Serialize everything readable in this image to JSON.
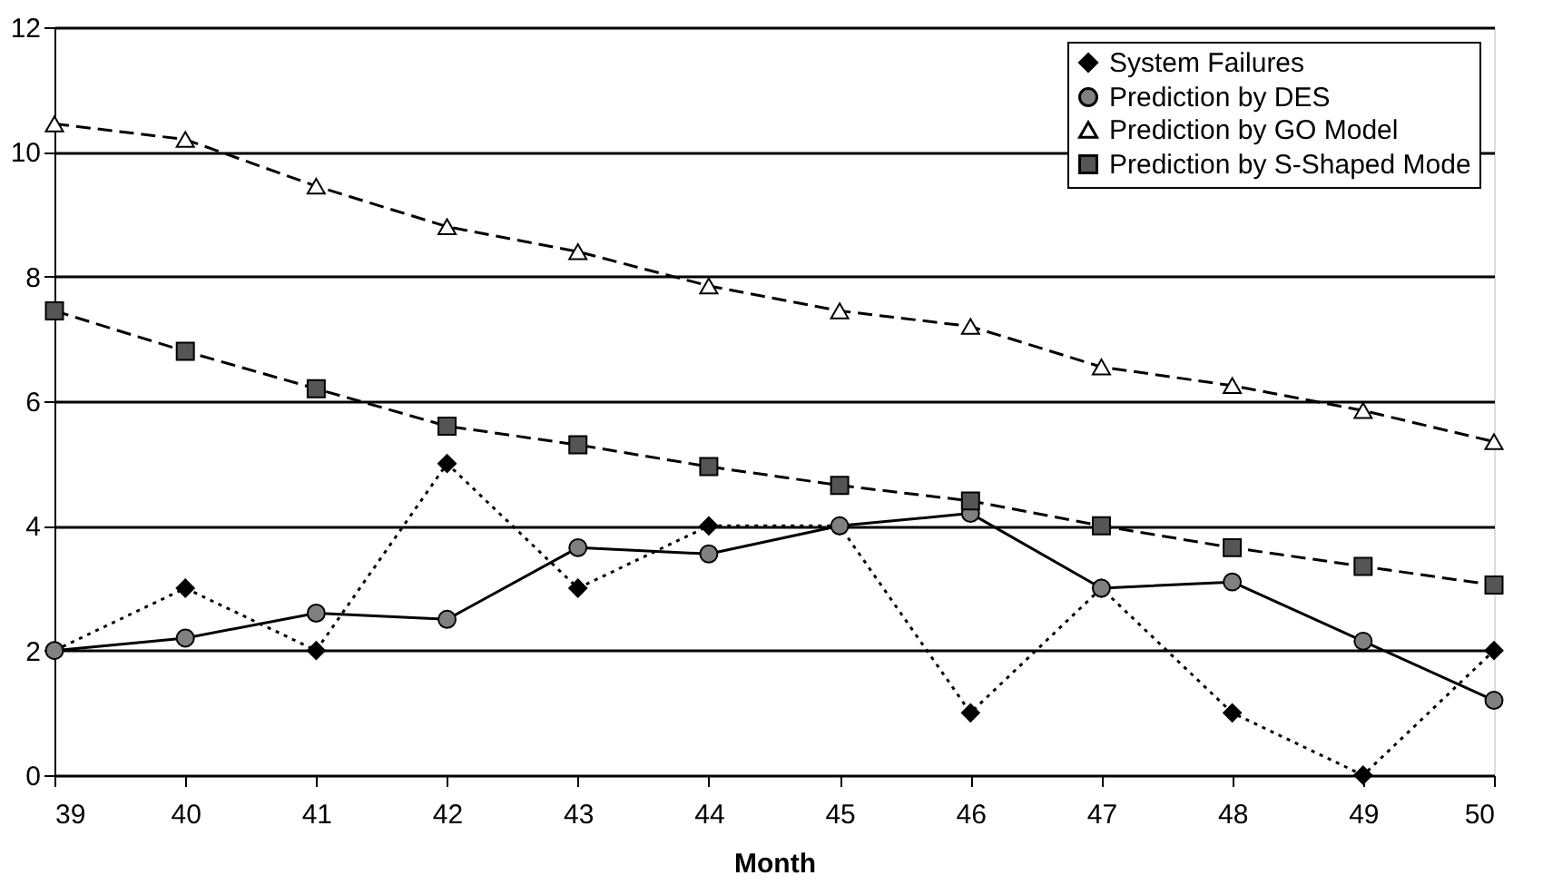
{
  "chart_data": {
    "type": "line",
    "xlabel": "Month",
    "x": [
      39,
      40,
      41,
      42,
      43,
      44,
      45,
      46,
      47,
      48,
      49,
      50
    ],
    "xlim": [
      39,
      50
    ],
    "xticks": [
      39,
      40,
      41,
      42,
      43,
      44,
      45,
      46,
      47,
      48,
      49,
      50
    ],
    "ylim": [
      0,
      12
    ],
    "yticks": [
      0,
      2,
      4,
      6,
      8,
      10,
      12
    ],
    "grid": "y",
    "legend": "top right",
    "series": [
      {
        "name": "System Failures",
        "color": "#000000",
        "marker": "diamond",
        "line_style": "dotted",
        "values": [
          2,
          3,
          2,
          5,
          3,
          4,
          4,
          1,
          3,
          1,
          0,
          2
        ]
      },
      {
        "name": "Prediction by DES",
        "color": "#808080",
        "marker": "circle",
        "line_style": "solid",
        "values": [
          2,
          2.2,
          2.6,
          2.5,
          3.65,
          3.55,
          4.0,
          4.2,
          3.0,
          3.1,
          2.15,
          1.2
        ]
      },
      {
        "name": "Prediction by GO Model",
        "color": "#ffffff",
        "marker": "triangle",
        "line_style": "dashed",
        "values": [
          10.45,
          10.2,
          9.45,
          8.8,
          8.4,
          7.85,
          7.45,
          7.2,
          6.55,
          6.25,
          5.85,
          5.35
        ]
      },
      {
        "name": "Prediction by S-Shaped Mode",
        "color": "#555555",
        "marker": "square",
        "line_style": "dashed",
        "values": [
          7.45,
          6.8,
          6.2,
          5.6,
          5.3,
          4.95,
          4.65,
          4.4,
          4.0,
          3.65,
          3.35,
          3.05
        ]
      }
    ]
  }
}
